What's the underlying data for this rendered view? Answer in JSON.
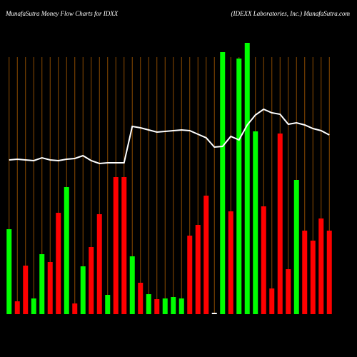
{
  "chart_data": {
    "type": "bar",
    "title": "MunafaSutra  Money Flow  Charts for IDXX",
    "subtitle": "(IDEXX  Laboratories,  Inc.) MunafaSutra.com",
    "values": [
      119,
      18,
      68,
      22,
      84,
      73,
      142,
      178,
      15,
      67,
      94,
      140,
      27,
      192,
      192,
      81,
      44,
      28,
      21,
      22,
      24,
      22,
      110,
      125,
      166,
      2,
      367,
      144,
      358,
      380,
      256,
      151,
      36,
      253,
      63,
      188,
      117,
      103,
      134,
      117
    ],
    "colors": [
      "#00ff00",
      "#ff0000",
      "#ff0000",
      "#00ff00",
      "#00ff00",
      "#ff0000",
      "#ff0000",
      "#00ff00",
      "#ff0000",
      "#00ff00",
      "#ff0000",
      "#ff0000",
      "#00ff00",
      "#ff0000",
      "#ff0000",
      "#00ff00",
      "#ff0000",
      "#00ff00",
      "#ff0000",
      "#00ff00",
      "#00ff00",
      "#00ff00",
      "#ff0000",
      "#ff0000",
      "#ff0000",
      "#ffffff",
      "#00ff00",
      "#ff0000",
      "#00ff00",
      "#00ff00",
      "#00ff00",
      "#ff0000",
      "#ff0000",
      "#ff0000",
      "#ff0000",
      "#00ff00",
      "#ff0000",
      "#ff0000",
      "#ff0000",
      "#ff0000"
    ],
    "line": {
      "color": "#ffffff",
      "values": [
        216,
        217,
        216,
        215,
        219,
        216,
        215,
        217,
        218,
        222,
        215,
        211,
        212,
        212,
        212,
        263,
        261,
        258,
        255,
        256,
        257,
        258,
        257,
        252,
        247,
        234,
        235,
        249,
        244,
        265,
        279,
        287,
        282,
        280,
        266,
        268,
        265,
        260,
        257,
        251
      ]
    },
    "ylim": [
      0,
      400
    ],
    "grid": true,
    "grid_color": "#8b4a00",
    "background": "#000000"
  }
}
